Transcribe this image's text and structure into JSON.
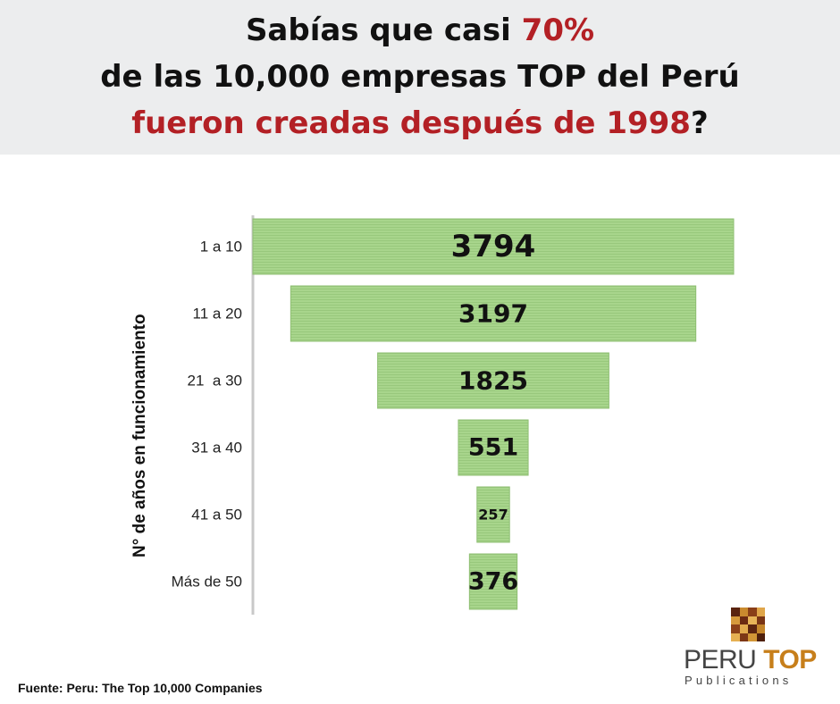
{
  "headline": {
    "line1_pre": "Sabías que casi ",
    "line1_highlight": "70%",
    "line2": "de las 10,000 empresas TOP del Perú",
    "line3_highlight": "fueron creadas después de 1998",
    "line3_post": "?"
  },
  "chart_data": {
    "type": "bar",
    "orientation": "horizontal-funnel",
    "categories": [
      "1 a 10",
      "11 a 20",
      "21  a 30",
      "31 a 40",
      "41 a 50",
      "Más de 50"
    ],
    "values": [
      3794,
      3197,
      1825,
      551,
      257,
      376
    ],
    "ylabel": "N° de años en funcionamiento",
    "xlabel": "",
    "title": "",
    "grid": false,
    "legend": "none"
  },
  "source": "Fuente: Peru: The Top 10,000 Companies",
  "logo": {
    "name_part1": "PERU ",
    "name_part2": "TOP",
    "sub": "Publications"
  },
  "colors": {
    "bar_fill": "#a8d58c",
    "bar_stripe": "#98c87c",
    "accent_red": "#b32025",
    "header_bg": "#ecedee",
    "logo_orange": "#c77f1b"
  }
}
